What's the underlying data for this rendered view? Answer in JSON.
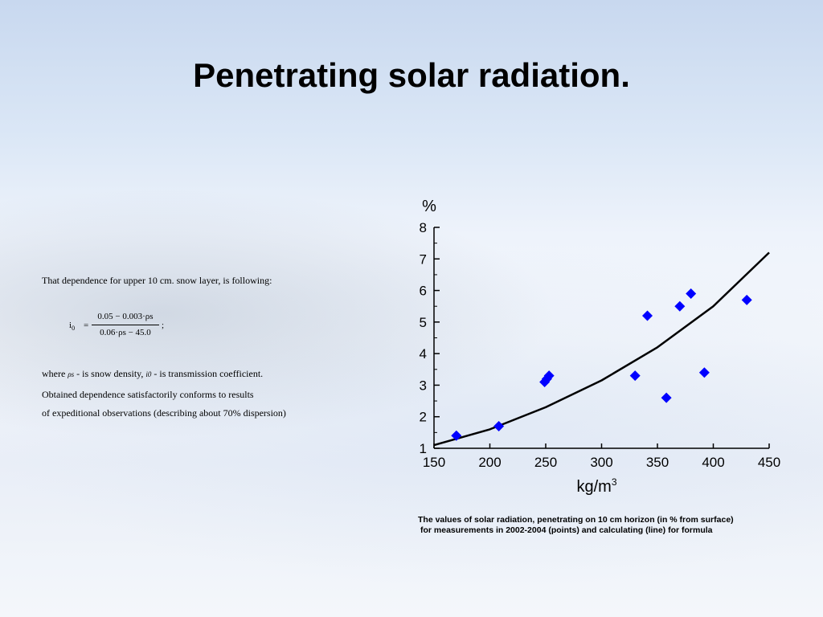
{
  "slide": {
    "title": "Penetrating solar radiation.",
    "intro": "That dependence for upper 10 cm. snow layer, is following:",
    "formula": {
      "lhs": "i",
      "lhs_sub": "0",
      "equals": "=",
      "numerator": "0.05 − 0.003·ρs",
      "denominator": "0.06·ρs − 45.0",
      "terminator": ";"
    },
    "where_line": {
      "prefix": "where",
      "rho_symbol": "ρs",
      "density_text": "- is snow density,",
      "i_symbol": "i0",
      "coef_text": "- is transmission coefficient."
    },
    "conform_line1": "Obtained dependence satisfactorily conforms to results",
    "conform_line2": "of expeditional observations (describing about 70% dispersion)",
    "caption_line1": "The values of solar radiation, penetrating on 10 cm horizon (in % from surface)",
    "caption_line2": "for measurements in 2002-2004 (points) and calculating (line) for formula"
  },
  "chart_data": {
    "type": "scatter",
    "ylabel": "%",
    "xlabel": "kg/m",
    "xlabel_sup": "3",
    "xlim": [
      150,
      450
    ],
    "ylim": [
      1,
      8
    ],
    "x_ticks": [
      150,
      200,
      250,
      300,
      350,
      400,
      450
    ],
    "y_ticks": [
      1,
      2,
      3,
      4,
      5,
      6,
      7,
      8
    ],
    "grid": false,
    "legend": "none",
    "series": [
      {
        "kind": "points",
        "color": "#0000ff",
        "marker": "diamond",
        "points": [
          [
            170,
            1.4
          ],
          [
            208,
            1.7
          ],
          [
            249,
            3.1
          ],
          [
            251,
            3.2
          ],
          [
            253,
            3.3
          ],
          [
            330,
            3.3
          ],
          [
            341,
            5.2
          ],
          [
            358,
            2.6
          ],
          [
            370,
            5.5
          ],
          [
            380,
            5.9
          ],
          [
            392,
            3.4
          ],
          [
            430,
            5.7
          ]
        ]
      },
      {
        "kind": "line",
        "color": "#000000",
        "points": [
          [
            150,
            1.1
          ],
          [
            200,
            1.6
          ],
          [
            250,
            2.3
          ],
          [
            300,
            3.15
          ],
          [
            350,
            4.2
          ],
          [
            400,
            5.5
          ],
          [
            450,
            7.2
          ]
        ]
      }
    ]
  }
}
